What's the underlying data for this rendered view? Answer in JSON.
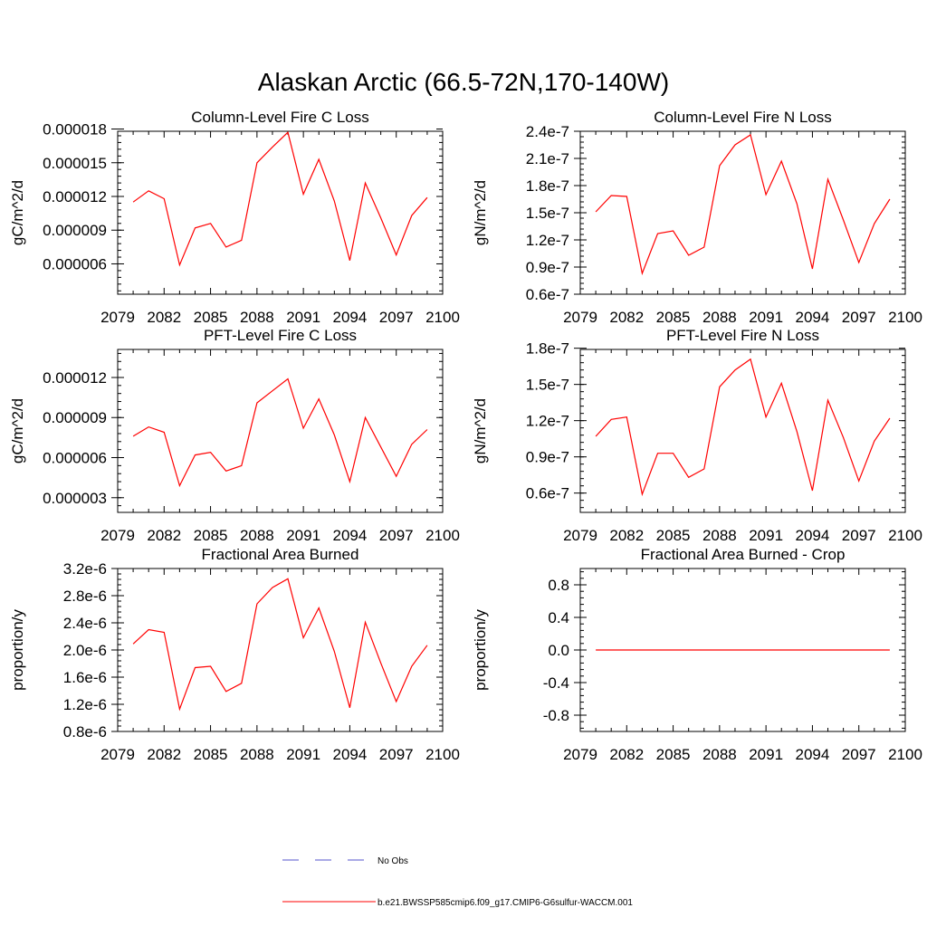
{
  "figure": {
    "title": "Alaskan Arctic (66.5-72N,170-140W)"
  },
  "legend": {
    "items": [
      {
        "label": "No Obs",
        "color": "#5555cc",
        "style": "dashed"
      },
      {
        "label": "b.e21.BWSSP585cmip6.f09_g17.CMIP6-G6sulfur-WACCM.001",
        "color": "#ff0000",
        "style": "solid"
      }
    ]
  },
  "chart_data": [
    {
      "type": "line",
      "title": "Column-Level Fire C Loss",
      "ylabel": "gC/m^2/d",
      "xlim": [
        2079,
        2100
      ],
      "xticks": [
        "2079",
        "2082",
        "2085",
        "2088",
        "2091",
        "2094",
        "2097",
        "2100"
      ],
      "ylim": [
        3.3e-06,
        1.78e-05
      ],
      "yticks": [
        "0.000006",
        "0.000009",
        "0.000012",
        "0.000015",
        "0.000018"
      ],
      "ytick_values": [
        6e-06,
        9e-06,
        1.2e-05,
        1.5e-05,
        1.8e-05
      ],
      "series": [
        {
          "color": "#ff0000",
          "x": [
            2080,
            2081,
            2082,
            2083,
            2084,
            2085,
            2086,
            2087,
            2088,
            2089,
            2090,
            2091,
            2092,
            2093,
            2094,
            2095,
            2096,
            2097,
            2098,
            2099
          ],
          "values": [
            1.15e-05,
            1.25e-05,
            1.18e-05,
            5.9e-06,
            9.2e-06,
            9.6e-06,
            7.5e-06,
            8.1e-06,
            1.5e-05,
            1.64e-05,
            1.77e-05,
            1.22e-05,
            1.53e-05,
            1.16e-05,
            6.3e-06,
            1.32e-05,
            1.01e-05,
            6.8e-06,
            1.03e-05,
            1.19e-05
          ]
        }
      ]
    },
    {
      "type": "line",
      "title": "Column-Level Fire N Loss",
      "ylabel": "gN/m^2/d",
      "xlim": [
        2079,
        2100
      ],
      "xticks": [
        "2079",
        "2082",
        "2085",
        "2088",
        "2091",
        "2094",
        "2097",
        "2100"
      ],
      "ylim": [
        6e-08,
        2.4e-07
      ],
      "yticks": [
        "0.6e-7",
        "0.9e-7",
        "1.2e-7",
        "1.5e-7",
        "1.8e-7",
        "2.1e-7",
        "2.4e-7"
      ],
      "ytick_values": [
        6e-08,
        9e-08,
        1.2e-07,
        1.5e-07,
        1.8e-07,
        2.1e-07,
        2.4e-07
      ],
      "series": [
        {
          "color": "#ff0000",
          "x": [
            2080,
            2081,
            2082,
            2083,
            2084,
            2085,
            2086,
            2087,
            2088,
            2089,
            2090,
            2091,
            2092,
            2093,
            2094,
            2095,
            2096,
            2097,
            2098,
            2099
          ],
          "values": [
            1.51e-07,
            1.69e-07,
            1.68e-07,
            8.3e-08,
            1.27e-07,
            1.3e-07,
            1.03e-07,
            1.12e-07,
            2.02e-07,
            2.25e-07,
            2.36e-07,
            1.7e-07,
            2.07e-07,
            1.6e-07,
            8.8e-08,
            1.87e-07,
            1.42e-07,
            9.5e-08,
            1.38e-07,
            1.65e-07
          ]
        }
      ]
    },
    {
      "type": "line",
      "title": "PFT-Level Fire C Loss",
      "ylabel": "gC/m^2/d",
      "xlim": [
        2079,
        2100
      ],
      "xticks": [
        "2079",
        "2082",
        "2085",
        "2088",
        "2091",
        "2094",
        "2097",
        "2100"
      ],
      "ylim": [
        1.9e-06,
        1.41e-05
      ],
      "yticks": [
        "0.000003",
        "0.000006",
        "0.000009",
        "0.000012"
      ],
      "ytick_values": [
        3e-06,
        6e-06,
        9e-06,
        1.2e-05
      ],
      "series": [
        {
          "color": "#ff0000",
          "x": [
            2080,
            2081,
            2082,
            2083,
            2084,
            2085,
            2086,
            2087,
            2088,
            2089,
            2090,
            2091,
            2092,
            2093,
            2094,
            2095,
            2096,
            2097,
            2098,
            2099
          ],
          "values": [
            7.6e-06,
            8.3e-06,
            7.9e-06,
            3.9e-06,
            6.2e-06,
            6.4e-06,
            5e-06,
            5.4e-06,
            1.01e-05,
            1.1e-05,
            1.19e-05,
            8.2e-06,
            1.04e-05,
            7.7e-06,
            4.2e-06,
            9e-06,
            6.8e-06,
            4.6e-06,
            7e-06,
            8.1e-06
          ]
        }
      ]
    },
    {
      "type": "line",
      "title": "PFT-Level Fire N Loss",
      "ylabel": "gN/m^2/d",
      "xlim": [
        2079,
        2100
      ],
      "xticks": [
        "2079",
        "2082",
        "2085",
        "2088",
        "2091",
        "2094",
        "2097",
        "2100"
      ],
      "ylim": [
        4.4e-08,
        1.79e-07
      ],
      "yticks": [
        "0.6e-7",
        "0.9e-7",
        "1.2e-7",
        "1.5e-7",
        "1.8e-7"
      ],
      "ytick_values": [
        6e-08,
        9e-08,
        1.2e-07,
        1.5e-07,
        1.8e-07
      ],
      "series": [
        {
          "color": "#ff0000",
          "x": [
            2080,
            2081,
            2082,
            2083,
            2084,
            2085,
            2086,
            2087,
            2088,
            2089,
            2090,
            2091,
            2092,
            2093,
            2094,
            2095,
            2096,
            2097,
            2098,
            2099
          ],
          "values": [
            1.07e-07,
            1.21e-07,
            1.23e-07,
            5.9e-08,
            9.3e-08,
            9.3e-08,
            7.3e-08,
            8e-08,
            1.48e-07,
            1.62e-07,
            1.71e-07,
            1.23e-07,
            1.51e-07,
            1.11e-07,
            6.2e-08,
            1.37e-07,
            1.06e-07,
            7e-08,
            1.03e-07,
            1.22e-07
          ]
        }
      ]
    },
    {
      "type": "line",
      "title": "Fractional Area Burned",
      "ylabel": "proportion/y",
      "xlim": [
        2079,
        2100
      ],
      "xticks": [
        "2079",
        "2082",
        "2085",
        "2088",
        "2091",
        "2094",
        "2097",
        "2100"
      ],
      "ylim": [
        8e-07,
        3.2e-06
      ],
      "yticks": [
        "0.8e-6",
        "1.2e-6",
        "1.6e-6",
        "2.0e-6",
        "2.4e-6",
        "2.8e-6",
        "3.2e-6"
      ],
      "ytick_values": [
        8e-07,
        1.2e-06,
        1.6e-06,
        2e-06,
        2.4e-06,
        2.8e-06,
        3.2e-06
      ],
      "series": [
        {
          "color": "#ff0000",
          "x": [
            2080,
            2081,
            2082,
            2083,
            2084,
            2085,
            2086,
            2087,
            2088,
            2089,
            2090,
            2091,
            2092,
            2093,
            2094,
            2095,
            2096,
            2097,
            2098,
            2099
          ],
          "values": [
            2.09e-06,
            2.3e-06,
            2.26e-06,
            1.13e-06,
            1.74e-06,
            1.76e-06,
            1.39e-06,
            1.51e-06,
            2.68e-06,
            2.92e-06,
            3.05e-06,
            2.18e-06,
            2.62e-06,
            1.98e-06,
            1.15e-06,
            2.41e-06,
            1.81e-06,
            1.24e-06,
            1.76e-06,
            2.07e-06
          ]
        }
      ]
    },
    {
      "type": "line",
      "title": "Fractional Area Burned - Crop",
      "ylabel": "proportion/y",
      "xlim": [
        2079,
        2100
      ],
      "xticks": [
        "2079",
        "2082",
        "2085",
        "2088",
        "2091",
        "2094",
        "2097",
        "2100"
      ],
      "ylim": [
        -1.0,
        1.0
      ],
      "yticks": [
        "-0.8",
        "-0.4",
        "0.0",
        "0.4",
        "0.8"
      ],
      "ytick_values": [
        -0.8,
        -0.4,
        0.0,
        0.4,
        0.8
      ],
      "series": [
        {
          "color": "#ff0000",
          "x": [
            2080,
            2081,
            2082,
            2083,
            2084,
            2085,
            2086,
            2087,
            2088,
            2089,
            2090,
            2091,
            2092,
            2093,
            2094,
            2095,
            2096,
            2097,
            2098,
            2099
          ],
          "values": [
            0,
            0,
            0,
            0,
            0,
            0,
            0,
            0,
            0,
            0,
            0,
            0,
            0,
            0,
            0,
            0,
            0,
            0,
            0,
            0
          ]
        }
      ]
    }
  ]
}
